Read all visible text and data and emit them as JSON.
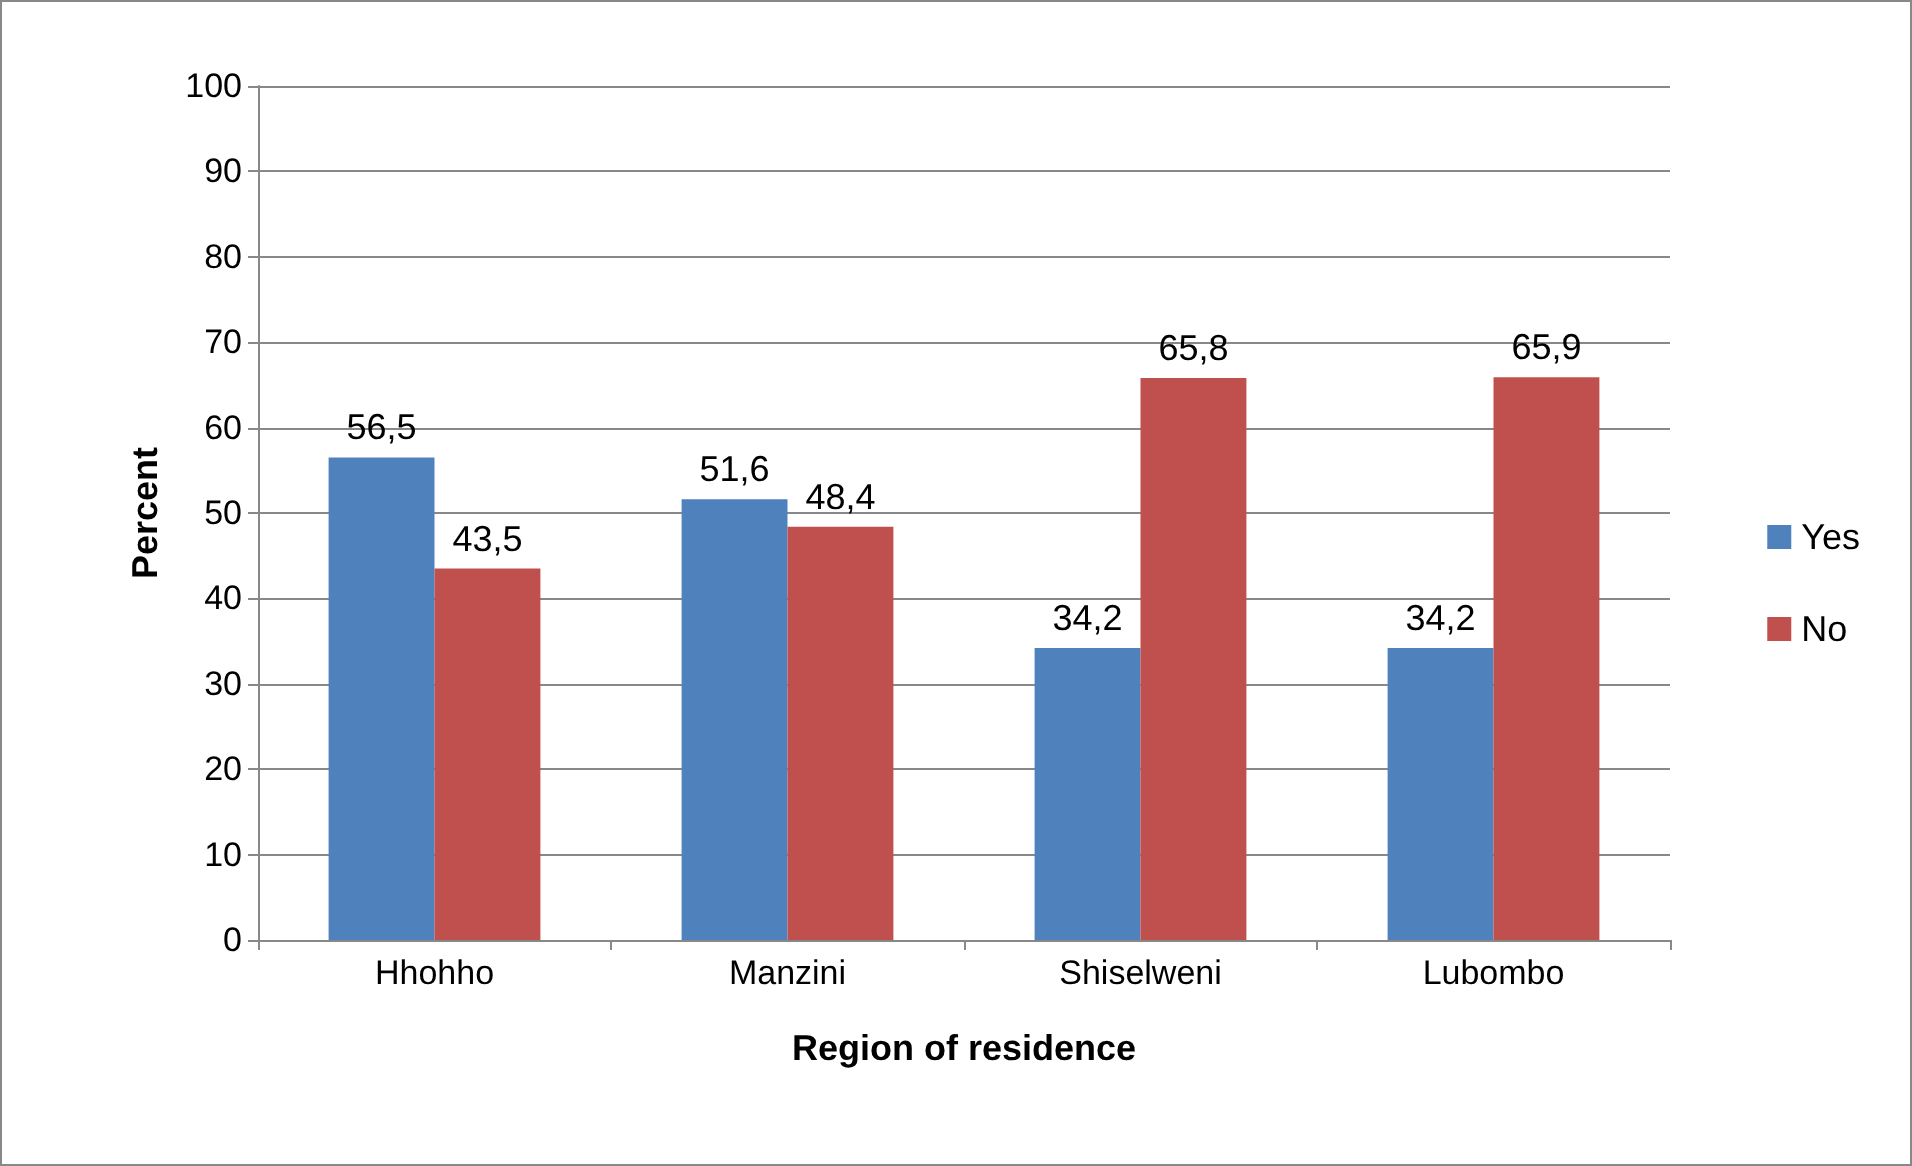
{
  "chart_data": {
    "type": "bar",
    "xlabel": "Region of residence",
    "ylabel": "Percent",
    "categories": [
      "Hhohho",
      "Manzini",
      "Shiselweni",
      "Lubombo"
    ],
    "series": [
      {
        "name": "Yes",
        "color": "#4f81bd",
        "values": [
          56.5,
          51.6,
          34.2,
          34.2
        ],
        "value_labels": [
          "56,5",
          "51,6",
          "34,2",
          "34,2"
        ]
      },
      {
        "name": "No",
        "color": "#c0504d",
        "values": [
          43.5,
          48.4,
          65.8,
          65.9
        ],
        "value_labels": [
          "43,5",
          "48,4",
          "65,8",
          "65,9"
        ]
      }
    ],
    "ylim": [
      0,
      100
    ],
    "yticks": [
      0,
      10,
      20,
      30,
      40,
      50,
      60,
      70,
      80,
      90,
      100
    ],
    "grid": "y",
    "legend": "right"
  }
}
